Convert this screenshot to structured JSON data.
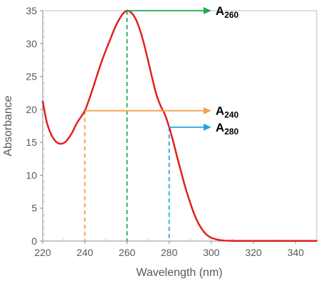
{
  "chart_data": {
    "type": "line",
    "xlabel": "Wavelength (nm)",
    "ylabel": "Absorbance",
    "xlim": [
      220,
      350
    ],
    "ylim": [
      0,
      35
    ],
    "grid": false,
    "x_ticks": [
      "220",
      "240",
      "260",
      "280",
      "300",
      "320",
      "340"
    ],
    "y_ticks": [
      "0",
      "5",
      "10",
      "15",
      "20",
      "25",
      "30",
      "35"
    ],
    "series": [
      {
        "color": "#e02020",
        "x": [
          220,
          222,
          224,
          226,
          228,
          230,
          232,
          234,
          236,
          238,
          240,
          242,
          244,
          246,
          248,
          250,
          252,
          254,
          256,
          258,
          260,
          262,
          264,
          266,
          268,
          270,
          272,
          274,
          276,
          278,
          280,
          282,
          284,
          286,
          288,
          290,
          292,
          294,
          296,
          298,
          300,
          302,
          304,
          306,
          308,
          310,
          315,
          320,
          330,
          340,
          350
        ],
        "y": [
          21.2,
          18.0,
          16.2,
          15.2,
          14.8,
          14.9,
          15.5,
          16.5,
          17.8,
          18.8,
          19.8,
          21.5,
          23.4,
          25.4,
          27.3,
          29.0,
          30.6,
          32.2,
          33.5,
          34.5,
          35.0,
          34.7,
          33.8,
          32.2,
          30.0,
          27.4,
          24.7,
          22.2,
          20.5,
          19.2,
          17.3,
          15.0,
          12.5,
          10.1,
          7.8,
          5.8,
          4.0,
          2.6,
          1.6,
          0.9,
          0.5,
          0.3,
          0.15,
          0.08,
          0.05,
          0.04,
          0.03,
          0.02,
          0.02,
          0.03,
          0.02
        ]
      }
    ],
    "annotations": [
      {
        "main": "A",
        "sub": "260",
        "x": 260,
        "y": 35,
        "color": "#1faa50"
      },
      {
        "main": "A",
        "sub": "240",
        "x": 240,
        "y": 19.8,
        "color": "#f5a050"
      },
      {
        "main": "A",
        "sub": "280",
        "x": 280,
        "y": 17.3,
        "color": "#1fa8e0"
      }
    ]
  }
}
